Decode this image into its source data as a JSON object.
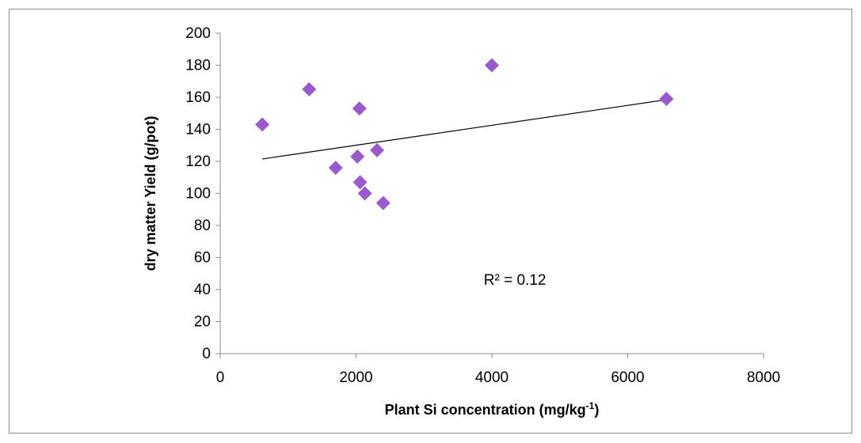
{
  "chart_data": {
    "type": "scatter",
    "xlabel": {
      "text": "Plant Si concentration (mg/kg",
      "sup": "-1",
      "close": ")"
    },
    "ylabel": "dry matter Yield (g/pot)",
    "xlim": [
      0,
      8000
    ],
    "ylim": [
      0,
      200
    ],
    "x_ticks": [
      0,
      2000,
      4000,
      6000,
      8000
    ],
    "y_ticks": [
      0,
      20,
      40,
      60,
      80,
      100,
      120,
      140,
      160,
      180,
      200
    ],
    "grid": false,
    "legend": "none",
    "marker": "diamond",
    "marker_color": "#9b59d0",
    "series": [
      {
        "points": [
          [
            620,
            143
          ],
          [
            1310,
            165
          ],
          [
            1700,
            116
          ],
          [
            2020,
            123
          ],
          [
            2050,
            153
          ],
          [
            2060,
            107
          ],
          [
            2130,
            100
          ],
          [
            2310,
            127
          ],
          [
            2400,
            94
          ],
          [
            4000,
            180
          ],
          [
            6570,
            159
          ]
        ]
      }
    ],
    "trendline": {
      "x": [
        620,
        6570
      ],
      "y": [
        121.5,
        158.5
      ],
      "color": "#000000"
    },
    "annotation": {
      "text": "R² = 0.12",
      "x": 5000,
      "y": 42
    }
  }
}
